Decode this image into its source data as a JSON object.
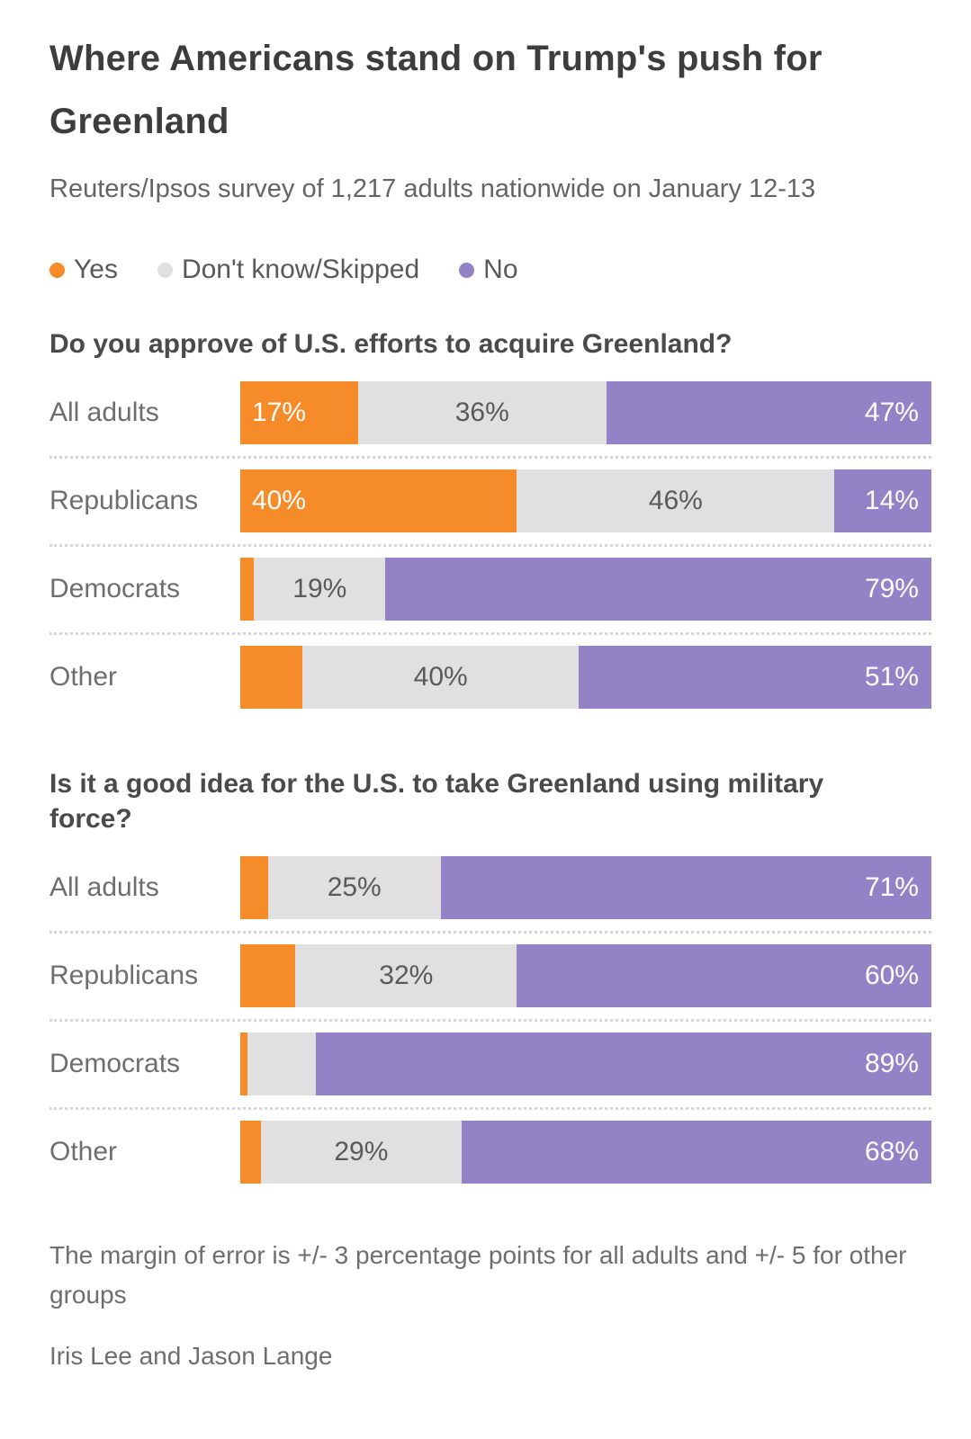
{
  "header": {
    "title": "Where Americans stand on Trump's push for Greenland",
    "subtitle": "Reuters/Ipsos survey of 1,217 adults nationwide on January 12-13"
  },
  "legend": {
    "items": [
      {
        "name": "yes",
        "label": "Yes",
        "color": "#F68B29"
      },
      {
        "name": "dont-know",
        "label": "Don't know/Skipped",
        "color": "#E0E0E0"
      },
      {
        "name": "no",
        "label": "No",
        "color": "#9383C6"
      }
    ]
  },
  "colors": {
    "yes": "#F68B29",
    "dont_know": "#E0E0E0",
    "no": "#9383C6",
    "label_on_gray": "#5a5a5a",
    "label_on_color": "#ffffff"
  },
  "chart_data": [
    {
      "type": "bar",
      "stacked": true,
      "orientation": "horizontal",
      "title": "Do you approve of U.S. efforts to acquire Greenland?",
      "categories": [
        "All adults",
        "Republicans",
        "Democrats",
        "Other"
      ],
      "series": [
        {
          "name": "Yes",
          "values": [
            17,
            40,
            2,
            9
          ]
        },
        {
          "name": "Don't know/Skipped",
          "values": [
            36,
            46,
            19,
            40
          ]
        },
        {
          "name": "No",
          "values": [
            47,
            14,
            79,
            51
          ]
        }
      ],
      "data_labels": [
        [
          "17%",
          "36%",
          "47%"
        ],
        [
          "40%",
          "46%",
          "14%"
        ],
        [
          "",
          "19%",
          "79%"
        ],
        [
          "",
          "40%",
          "51%"
        ]
      ],
      "xlim": [
        0,
        100
      ],
      "legend_position": "top",
      "grid": false
    },
    {
      "type": "bar",
      "stacked": true,
      "orientation": "horizontal",
      "title": "Is it a good idea for the U.S. to take Greenland using military force?",
      "categories": [
        "All adults",
        "Republicans",
        "Democrats",
        "Other"
      ],
      "series": [
        {
          "name": "Yes",
          "values": [
            4,
            8,
            1,
            3
          ]
        },
        {
          "name": "Don't know/Skipped",
          "values": [
            25,
            32,
            10,
            29
          ]
        },
        {
          "name": "No",
          "values": [
            71,
            60,
            89,
            68
          ]
        }
      ],
      "data_labels": [
        [
          "",
          "25%",
          "71%"
        ],
        [
          "",
          "32%",
          "60%"
        ],
        [
          "",
          "",
          "89%"
        ],
        [
          "",
          "29%",
          "68%"
        ]
      ],
      "xlim": [
        0,
        100
      ],
      "legend_position": "top",
      "grid": false
    }
  ],
  "footer": {
    "note": "The margin of error is +/- 3 percentage points for all adults and +/- 5 for other groups",
    "byline": "Iris Lee and Jason Lange"
  }
}
